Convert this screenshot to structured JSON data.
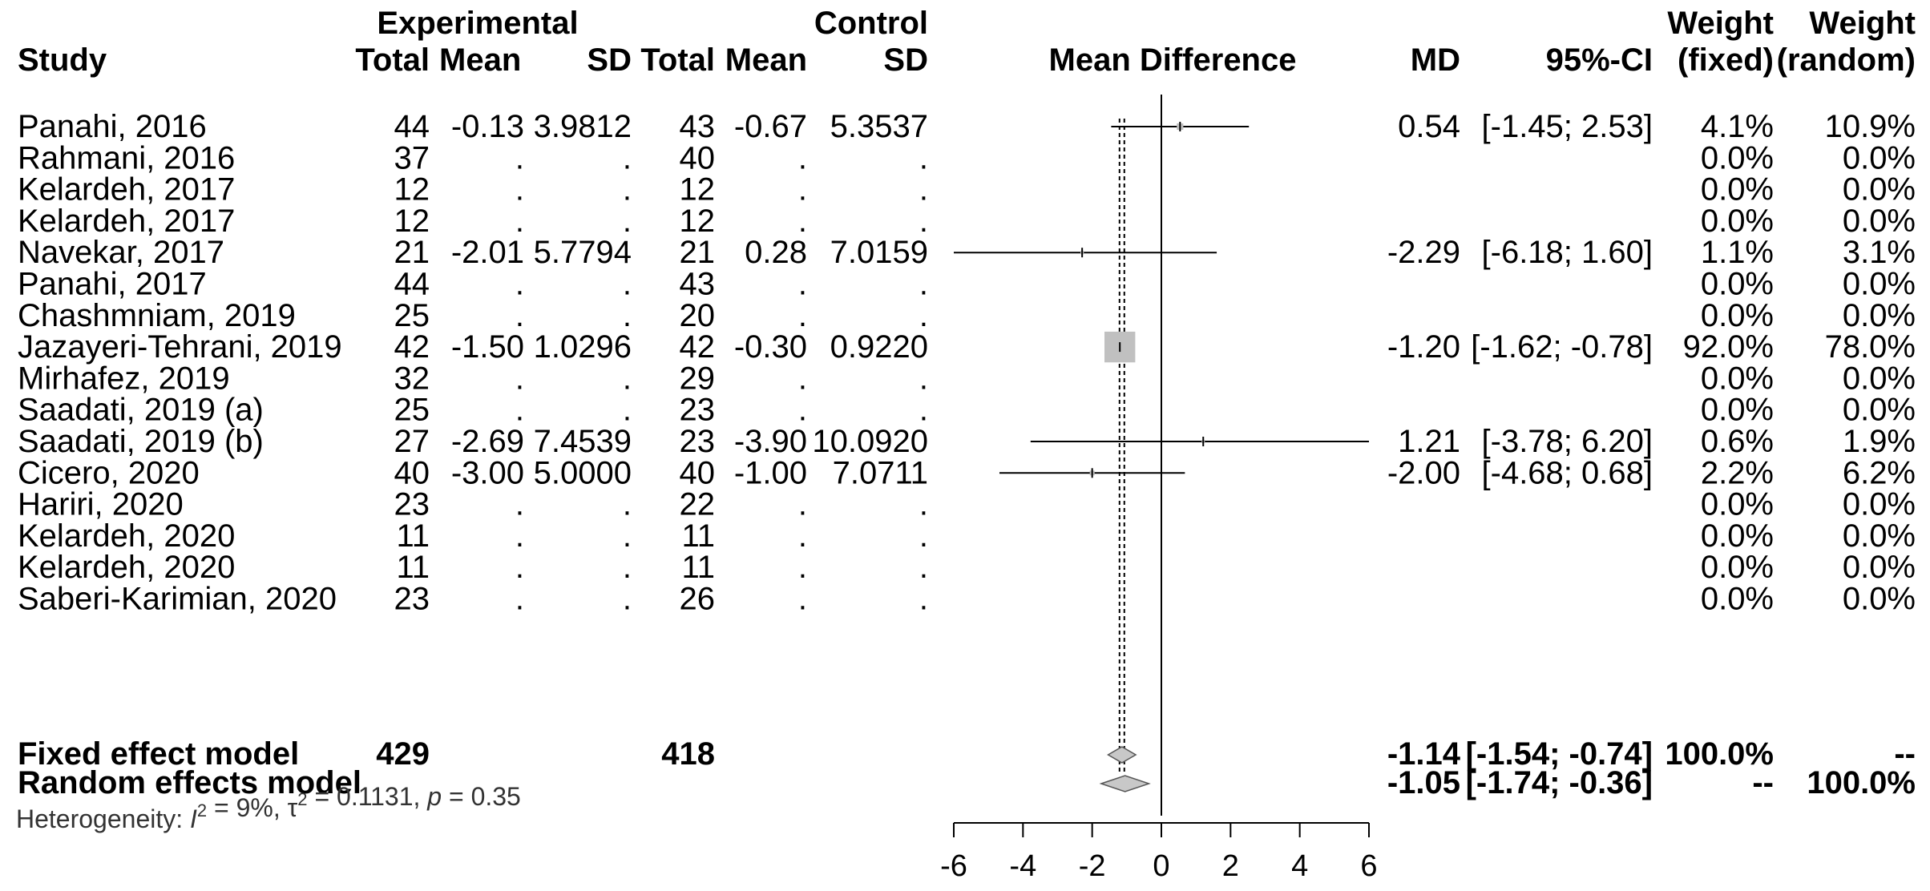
{
  "chart_data": {
    "type": "forest",
    "title": "",
    "xlabel": "",
    "xlim": [
      -6,
      6
    ],
    "xticks": [
      -6,
      -4,
      -2,
      0,
      2,
      4,
      6
    ],
    "fixed_effect_estimate": -1.14,
    "header": {
      "group_experimental": "Experimental",
      "group_control": "Control",
      "study": "Study",
      "exp_total": "Total",
      "exp_mean": "Mean",
      "exp_sd": "SD",
      "ctl_total": "Total",
      "ctl_mean": "Mean",
      "ctl_sd": "SD",
      "plot": "Mean Difference",
      "md": "MD",
      "ci": "95%-CI",
      "w_fixed_1": "Weight",
      "w_fixed_2": "(fixed)",
      "w_random_1": "Weight",
      "w_random_2": "(random)"
    },
    "studies": [
      {
        "study": "Panahi, 2016",
        "exp_total": "44",
        "exp_mean": "-0.13",
        "exp_sd": "3.9812",
        "ctl_total": "43",
        "ctl_mean": "-0.67",
        "ctl_sd": "5.3537",
        "md": 0.54,
        "lo": -1.45,
        "hi": 2.53,
        "md_text": "0.54",
        "ci_text": "[-1.45; 2.53]",
        "w_fixed": "4.1%",
        "w_random": "10.9%"
      },
      {
        "study": "Rahmani, 2016",
        "exp_total": "37",
        "exp_mean": ".",
        "exp_sd": ".",
        "ctl_total": "40",
        "ctl_mean": ".",
        "ctl_sd": ".",
        "md": null,
        "lo": null,
        "hi": null,
        "md_text": "",
        "ci_text": "",
        "w_fixed": "0.0%",
        "w_random": "0.0%"
      },
      {
        "study": "Kelardeh, 2017",
        "exp_total": "12",
        "exp_mean": ".",
        "exp_sd": ".",
        "ctl_total": "12",
        "ctl_mean": ".",
        "ctl_sd": ".",
        "md": null,
        "lo": null,
        "hi": null,
        "md_text": "",
        "ci_text": "",
        "w_fixed": "0.0%",
        "w_random": "0.0%"
      },
      {
        "study": "Kelardeh, 2017",
        "exp_total": "12",
        "exp_mean": ".",
        "exp_sd": ".",
        "ctl_total": "12",
        "ctl_mean": ".",
        "ctl_sd": ".",
        "md": null,
        "lo": null,
        "hi": null,
        "md_text": "",
        "ci_text": "",
        "w_fixed": "0.0%",
        "w_random": "0.0%"
      },
      {
        "study": "Navekar, 2017",
        "exp_total": "21",
        "exp_mean": "-2.01",
        "exp_sd": "5.7794",
        "ctl_total": "21",
        "ctl_mean": "0.28",
        "ctl_sd": "7.0159",
        "md": -2.29,
        "lo": -6.18,
        "hi": 1.6,
        "md_text": "-2.29",
        "ci_text": "[-6.18; 1.60]",
        "w_fixed": "1.1%",
        "w_random": "3.1%"
      },
      {
        "study": "Panahi, 2017",
        "exp_total": "44",
        "exp_mean": ".",
        "exp_sd": ".",
        "ctl_total": "43",
        "ctl_mean": ".",
        "ctl_sd": ".",
        "md": null,
        "lo": null,
        "hi": null,
        "md_text": "",
        "ci_text": "",
        "w_fixed": "0.0%",
        "w_random": "0.0%"
      },
      {
        "study": "Chashmniam, 2019",
        "exp_total": "25",
        "exp_mean": ".",
        "exp_sd": ".",
        "ctl_total": "20",
        "ctl_mean": ".",
        "ctl_sd": ".",
        "md": null,
        "lo": null,
        "hi": null,
        "md_text": "",
        "ci_text": "",
        "w_fixed": "0.0%",
        "w_random": "0.0%"
      },
      {
        "study": "Jazayeri-Tehrani, 2019",
        "exp_total": "42",
        "exp_mean": "-1.50",
        "exp_sd": "1.0296",
        "ctl_total": "42",
        "ctl_mean": "-0.30",
        "ctl_sd": "0.9220",
        "md": -1.2,
        "lo": -1.62,
        "hi": -0.78,
        "md_text": "-1.20",
        "ci_text": "[-1.62; -0.78]",
        "w_fixed": "92.0%",
        "w_random": "78.0%"
      },
      {
        "study": "Mirhafez, 2019",
        "exp_total": "32",
        "exp_mean": ".",
        "exp_sd": ".",
        "ctl_total": "29",
        "ctl_mean": ".",
        "ctl_sd": ".",
        "md": null,
        "lo": null,
        "hi": null,
        "md_text": "",
        "ci_text": "",
        "w_fixed": "0.0%",
        "w_random": "0.0%"
      },
      {
        "study": "Saadati, 2019 (a)",
        "exp_total": "25",
        "exp_mean": ".",
        "exp_sd": ".",
        "ctl_total": "23",
        "ctl_mean": ".",
        "ctl_sd": ".",
        "md": null,
        "lo": null,
        "hi": null,
        "md_text": "",
        "ci_text": "",
        "w_fixed": "0.0%",
        "w_random": "0.0%"
      },
      {
        "study": "Saadati, 2019 (b)",
        "exp_total": "27",
        "exp_mean": "-2.69",
        "exp_sd": "7.4539",
        "ctl_total": "23",
        "ctl_mean": "-3.90",
        "ctl_sd": "10.0920",
        "md": 1.21,
        "lo": -3.78,
        "hi": 6.2,
        "md_text": "1.21",
        "ci_text": "[-3.78; 6.20]",
        "w_fixed": "0.6%",
        "w_random": "1.9%"
      },
      {
        "study": "Cicero, 2020",
        "exp_total": "40",
        "exp_mean": "-3.00",
        "exp_sd": "5.0000",
        "ctl_total": "40",
        "ctl_mean": "-1.00",
        "ctl_sd": "7.0711",
        "md": -2.0,
        "lo": -4.68,
        "hi": 0.68,
        "md_text": "-2.00",
        "ci_text": "[-4.68; 0.68]",
        "w_fixed": "2.2%",
        "w_random": "6.2%"
      },
      {
        "study": "Hariri, 2020",
        "exp_total": "23",
        "exp_mean": ".",
        "exp_sd": ".",
        "ctl_total": "22",
        "ctl_mean": ".",
        "ctl_sd": ".",
        "md": null,
        "lo": null,
        "hi": null,
        "md_text": "",
        "ci_text": "",
        "w_fixed": "0.0%",
        "w_random": "0.0%"
      },
      {
        "study": "Kelardeh, 2020",
        "exp_total": "11",
        "exp_mean": ".",
        "exp_sd": ".",
        "ctl_total": "11",
        "ctl_mean": ".",
        "ctl_sd": ".",
        "md": null,
        "lo": null,
        "hi": null,
        "md_text": "",
        "ci_text": "",
        "w_fixed": "0.0%",
        "w_random": "0.0%"
      },
      {
        "study": "Kelardeh, 2020",
        "exp_total": "11",
        "exp_mean": ".",
        "exp_sd": ".",
        "ctl_total": "11",
        "ctl_mean": ".",
        "ctl_sd": ".",
        "md": null,
        "lo": null,
        "hi": null,
        "md_text": "",
        "ci_text": "",
        "w_fixed": "0.0%",
        "w_random": "0.0%"
      },
      {
        "study": "Saberi-Karimian, 2020",
        "exp_total": "23",
        "exp_mean": ".",
        "exp_sd": ".",
        "ctl_total": "26",
        "ctl_mean": ".",
        "ctl_sd": ".",
        "md": null,
        "lo": null,
        "hi": null,
        "md_text": "",
        "ci_text": "",
        "w_fixed": "0.0%",
        "w_random": "0.0%"
      }
    ],
    "pooled": [
      {
        "label": "Fixed effect model",
        "exp_total": "429",
        "ctl_total": "418",
        "md": -1.14,
        "lo": -1.54,
        "hi": -0.74,
        "md_text": "-1.14",
        "ci_text": "[-1.54; -0.74]",
        "w_fixed": "100.0%",
        "w_random": "--"
      },
      {
        "label": "Random effects model",
        "exp_total": "",
        "ctl_total": "",
        "md": -1.05,
        "lo": -1.74,
        "hi": -0.36,
        "md_text": "-1.05",
        "ci_text": "[-1.74; -0.36]",
        "w_fixed": "--",
        "w_random": "100.0%"
      }
    ],
    "heterogeneity": {
      "prefix": "Heterogeneity: ",
      "i2_label": "I",
      "i2_value": " = 9%, ",
      "tau2_label": "τ",
      "tau2_value": " = 0.1131, ",
      "p_label": "p",
      "p_value": " = 0.35",
      "sup": "2"
    },
    "colors": {
      "square": "#c0c0c0",
      "diamond": "#c8c8c8",
      "line": "#000000"
    }
  }
}
